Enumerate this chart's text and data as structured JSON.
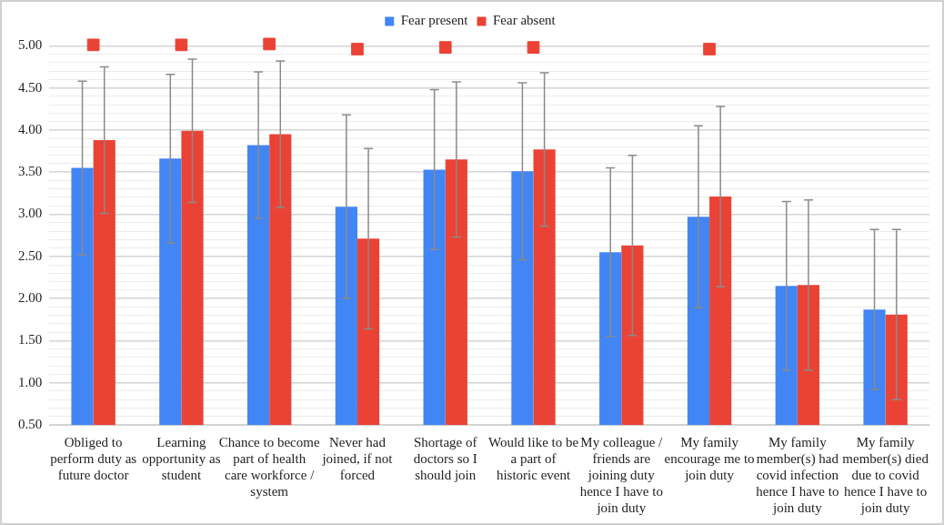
{
  "chart_data": {
    "type": "bar",
    "categories": [
      "Obliged to perform duty as future doctor",
      "Learning opportunity as student",
      "Chance to become part of health care workforce / system",
      "Never had joined, if not forced",
      "Shortage of doctors so I should join",
      "Would like to be a part of historic event",
      "My colleague / friends are joining duty hence I have to join duty",
      "My family encourage me to join duty",
      "My family member(s) had covid infection hence I have to join duty",
      "My family member(s) died due to covid hence I have to join duty"
    ],
    "series": [
      {
        "name": "Fear present",
        "color": "#4285f4",
        "values": [
          3.55,
          3.66,
          3.82,
          3.09,
          3.53,
          3.51,
          2.55,
          2.97,
          2.15,
          1.87
        ],
        "errors": [
          1.03,
          1.0,
          0.87,
          1.09,
          0.95,
          1.05,
          1.0,
          1.08,
          1.0,
          0.95
        ]
      },
      {
        "name": "Fear absent",
        "color": "#ea4335",
        "values": [
          3.88,
          3.99,
          3.95,
          2.71,
          3.65,
          3.77,
          2.63,
          3.21,
          2.16,
          1.81
        ],
        "errors": [
          0.87,
          0.85,
          0.87,
          1.07,
          0.92,
          0.91,
          1.07,
          1.07,
          1.01,
          1.01
        ]
      },
      {
        "type": "scatter",
        "color": "#ea4335",
        "marker": "square",
        "values": [
          5.01,
          5.01,
          5.02,
          4.96,
          4.98,
          4.98,
          null,
          4.96,
          null,
          null
        ]
      }
    ],
    "ylim": [
      0.5,
      5.1
    ],
    "yticks": [
      {
        "value": 0.5,
        "label": "0.50"
      },
      {
        "value": 0.6,
        "label": null
      },
      {
        "value": 0.7,
        "label": null
      },
      {
        "value": 0.8,
        "label": null
      },
      {
        "value": 0.9,
        "label": null
      },
      {
        "value": 1.0,
        "label": "1.00"
      },
      {
        "value": 1.1,
        "label": null
      },
      {
        "value": 1.2,
        "label": null
      },
      {
        "value": 1.3,
        "label": null
      },
      {
        "value": 1.4,
        "label": null
      },
      {
        "value": 1.5,
        "label": "1.50"
      },
      {
        "value": 1.6,
        "label": null
      },
      {
        "value": 1.7,
        "label": null
      },
      {
        "value": 1.8,
        "label": null
      },
      {
        "value": 1.9,
        "label": null
      },
      {
        "value": 2.0,
        "label": "2.00"
      },
      {
        "value": 2.1,
        "label": null
      },
      {
        "value": 2.2,
        "label": null
      },
      {
        "value": 2.3,
        "label": null
      },
      {
        "value": 2.4,
        "label": null
      },
      {
        "value": 2.5,
        "label": "2.50"
      },
      {
        "value": 2.6,
        "label": null
      },
      {
        "value": 2.7,
        "label": null
      },
      {
        "value": 2.8,
        "label": null
      },
      {
        "value": 2.9,
        "label": null
      },
      {
        "value": 3.0,
        "label": "3.00"
      },
      {
        "value": 3.1,
        "label": null
      },
      {
        "value": 3.2,
        "label": null
      },
      {
        "value": 3.3,
        "label": null
      },
      {
        "value": 3.4,
        "label": null
      },
      {
        "value": 3.5,
        "label": "3.50"
      },
      {
        "value": 3.6,
        "label": null
      },
      {
        "value": 3.7,
        "label": null
      },
      {
        "value": 3.8,
        "label": null
      },
      {
        "value": 3.9,
        "label": null
      },
      {
        "value": 4.0,
        "label": "4.00"
      },
      {
        "value": 4.1,
        "label": null
      },
      {
        "value": 4.2,
        "label": null
      },
      {
        "value": 4.3,
        "label": null
      },
      {
        "value": 4.4,
        "label": null
      },
      {
        "value": 4.5,
        "label": "4.50"
      },
      {
        "value": 4.6,
        "label": null
      },
      {
        "value": 4.7,
        "label": null
      },
      {
        "value": 4.8,
        "label": null
      },
      {
        "value": 4.9,
        "label": null
      },
      {
        "value": 5.0,
        "label": "5.00"
      }
    ],
    "grid": "y",
    "legend": "top"
  }
}
